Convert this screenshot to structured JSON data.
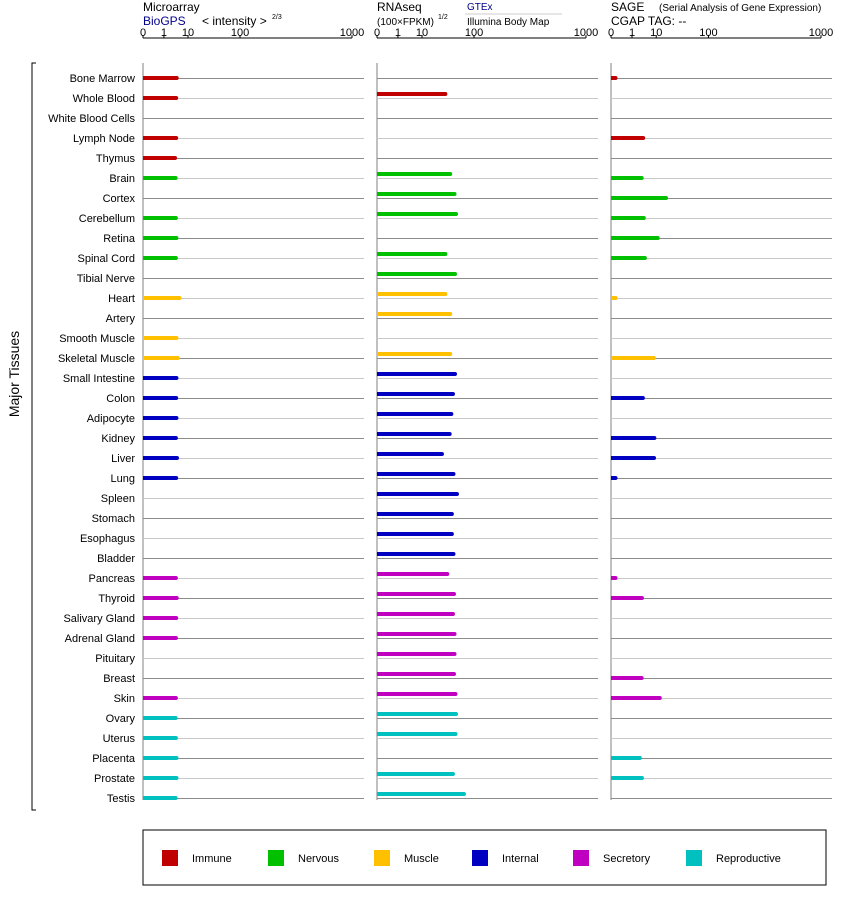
{
  "chart_data": {
    "type": "bar",
    "orientation": "horizontal",
    "y_axis_label": "Major Tissues",
    "categories": [
      "Bone Marrow",
      "Whole Blood",
      "White Blood Cells",
      "Lymph Node",
      "Thymus",
      "Brain",
      "Cortex",
      "Cerebellum",
      "Retina",
      "Spinal Cord",
      "Tibial Nerve",
      "Heart",
      "Artery",
      "Smooth Muscle",
      "Skeletal Muscle",
      "Small Intestine",
      "Colon",
      "Adipocyte",
      "Kidney",
      "Liver",
      "Lung",
      "Spleen",
      "Stomach",
      "Esophagus",
      "Bladder",
      "Pancreas",
      "Thyroid",
      "Salivary Gland",
      "Adrenal Gland",
      "Pituitary",
      "Breast",
      "Skin",
      "Ovary",
      "Uterus",
      "Placenta",
      "Prostate",
      "Testis"
    ],
    "category_groups": [
      "Immune",
      "Immune",
      "Immune",
      "Immune",
      "Immune",
      "Nervous",
      "Nervous",
      "Nervous",
      "Nervous",
      "Nervous",
      "Nervous",
      "Muscle",
      "Muscle",
      "Muscle",
      "Muscle",
      "Internal",
      "Internal",
      "Internal",
      "Internal",
      "Internal",
      "Internal",
      "Internal",
      "Internal",
      "Internal",
      "Internal",
      "Secretory",
      "Secretory",
      "Secretory",
      "Secretory",
      "Secretory",
      "Secretory",
      "Secretory",
      "Reproductive",
      "Reproductive",
      "Reproductive",
      "Reproductive",
      "Reproductive"
    ],
    "group_colors": {
      "Immune": "#c00000",
      "Nervous": "#00c000",
      "Muscle": "#ffc000",
      "Internal": "#0000c0",
      "Secretory": "#c000c0",
      "Reproductive": "#00c0c0"
    },
    "legend": [
      {
        "label": "Immune",
        "color": "#c00000"
      },
      {
        "label": "Nervous",
        "color": "#00c000"
      },
      {
        "label": "Muscle",
        "color": "#ffc000"
      },
      {
        "label": "Internal",
        "color": "#0000c0"
      },
      {
        "label": "Secretory",
        "color": "#c000c0"
      },
      {
        "label": "Reproductive",
        "color": "#00c0c0"
      }
    ],
    "legend_position": "bottom",
    "axis_ticks": [
      "0",
      "1",
      "10",
      "100",
      "1000"
    ],
    "axis_tick_values": [
      0,
      1,
      10,
      100,
      1000
    ],
    "axis_range": [
      0,
      1000
    ],
    "scale": "power 1/3",
    "panels": [
      {
        "title": "Microarray",
        "source": "BioGPS",
        "unit": "< intensity >",
        "unit_superscript": "2/3",
        "source_color": "#00008b",
        "values": [
          4.2,
          4.0,
          null,
          4.0,
          3.6,
          3.8,
          null,
          3.9,
          4.1,
          3.9,
          null,
          5.3,
          null,
          4.1,
          4.6,
          4.1,
          4.0,
          4.1,
          3.9,
          4.3,
          4.0,
          null,
          null,
          null,
          null,
          3.9,
          4.2,
          4.0,
          3.9,
          null,
          null,
          3.9,
          3.8,
          3.9,
          4.1,
          4.1,
          3.8
        ]
      },
      {
        "title": "RNAseq",
        "unit": "(100×FPKM)",
        "unit_superscript": "1/2",
        "source_top": "GTEx",
        "source_bottom": "Illumina Body Map",
        "source_color": "#00008b",
        "values_gtex": [
          null,
          35,
          null,
          null,
          null,
          null,
          null,
          null,
          null,
          null,
          null,
          null,
          null,
          null,
          null,
          null,
          null,
          null,
          null,
          null,
          null,
          null,
          null,
          null,
          null,
          null,
          null,
          null,
          null,
          null,
          null,
          null,
          null,
          null,
          null,
          null,
          null
        ],
        "values": [
          null,
          null,
          null,
          null,
          null,
          43,
          51,
          54,
          null,
          35,
          52,
          35,
          43,
          null,
          43,
          52,
          48,
          45,
          42,
          30,
          49,
          56,
          46,
          46,
          49,
          38,
          50,
          48,
          51,
          51,
          50,
          53,
          54,
          null,
          null,
          null,
          null
        ],
        "values_illumina": [
          null,
          null,
          null,
          null,
          null,
          null,
          null,
          null,
          null,
          null,
          null,
          null,
          null,
          null,
          null,
          null,
          null,
          null,
          null,
          null,
          null,
          null,
          null,
          null,
          null,
          null,
          null,
          null,
          null,
          null,
          null,
          null,
          null,
          53,
          null,
          48,
          72
        ]
      },
      {
        "title": "SAGE",
        "title_note": "(Serial Analysis of Gene Expression)",
        "subtitle": "CGAP TAG:  --",
        "values": [
          0.01,
          null,
          null,
          3.6,
          null,
          3.1,
          18,
          3.8,
          11,
          4.2,
          null,
          0.01,
          null,
          null,
          8.5,
          null,
          3.5,
          null,
          8.8,
          8.6,
          0.01,
          null,
          null,
          null,
          null,
          0.01,
          3.2,
          null,
          null,
          null,
          3.1,
          12.5,
          null,
          null,
          2.6,
          3.2,
          null
        ]
      }
    ]
  }
}
